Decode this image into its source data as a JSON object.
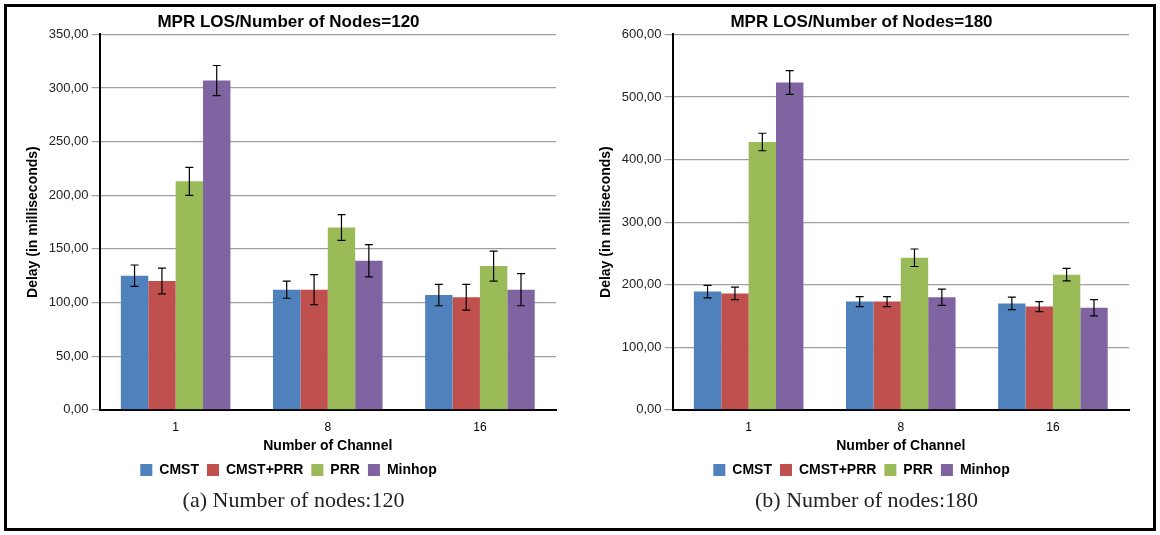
{
  "chart_data": [
    {
      "type": "bar",
      "title": "MPR LOS/Number of Nodes=120",
      "xlabel": "Number of Channel",
      "ylabel": "Delay (in milliseconds)",
      "categories": [
        "1",
        "8",
        "16"
      ],
      "series": [
        {
          "name": "CMST",
          "color": "#4f81bd",
          "values": [
            125,
            112,
            107
          ],
          "errors": [
            10,
            8,
            10
          ]
        },
        {
          "name": "CMST+PRR",
          "color": "#c0504d",
          "values": [
            120,
            112,
            105
          ],
          "errors": [
            12,
            14,
            12
          ]
        },
        {
          "name": "PRR",
          "color": "#9bbb59",
          "values": [
            213,
            170,
            134
          ],
          "errors": [
            13,
            12,
            14
          ]
        },
        {
          "name": "Minhop",
          "color": "#8064a2",
          "values": [
            307,
            139,
            112
          ],
          "errors": [
            14,
            15,
            15
          ]
        }
      ],
      "ylim": [
        0,
        350
      ],
      "yticks": [
        {
          "value": 0,
          "label": "0,00"
        },
        {
          "value": 50,
          "label": "50,00"
        },
        {
          "value": 100,
          "label": "100,00"
        },
        {
          "value": 150,
          "label": "150,00"
        },
        {
          "value": 200,
          "label": "200,00"
        },
        {
          "value": 250,
          "label": "250,00"
        },
        {
          "value": 300,
          "label": "300,00"
        },
        {
          "value": 350,
          "label": "350,00"
        }
      ],
      "grid": "y",
      "legend": "bottom",
      "annotations": [
        "(a) Number of nodes:120"
      ]
    },
    {
      "type": "bar",
      "title": "MPR LOS/Number of Nodes=180",
      "xlabel": "Number of Channel",
      "ylabel": "Delay (in milliseconds)",
      "categories": [
        "1",
        "8",
        "16"
      ],
      "series": [
        {
          "name": "CMST",
          "color": "#4f81bd",
          "values": [
            189,
            173,
            170
          ],
          "errors": [
            10,
            8,
            10
          ]
        },
        {
          "name": "CMST+PRR",
          "color": "#c0504d",
          "values": [
            186,
            173,
            165
          ],
          "errors": [
            10,
            8,
            8
          ]
        },
        {
          "name": "PRR",
          "color": "#9bbb59",
          "values": [
            428,
            243,
            216
          ],
          "errors": [
            14,
            14,
            10
          ]
        },
        {
          "name": "Minhop",
          "color": "#8064a2",
          "values": [
            523,
            180,
            163
          ],
          "errors": [
            19,
            13,
            13
          ]
        }
      ],
      "ylim": [
        0,
        600
      ],
      "yticks": [
        {
          "value": 0,
          "label": "0,00"
        },
        {
          "value": 100,
          "label": "100,00"
        },
        {
          "value": 200,
          "label": "200,00"
        },
        {
          "value": 300,
          "label": "300,00"
        },
        {
          "value": 400,
          "label": "400,00"
        },
        {
          "value": 500,
          "label": "500,00"
        },
        {
          "value": 600,
          "label": "600,00"
        }
      ],
      "grid": "y",
      "legend": "bottom",
      "annotations": [
        "(b) Number of nodes:180"
      ]
    }
  ]
}
